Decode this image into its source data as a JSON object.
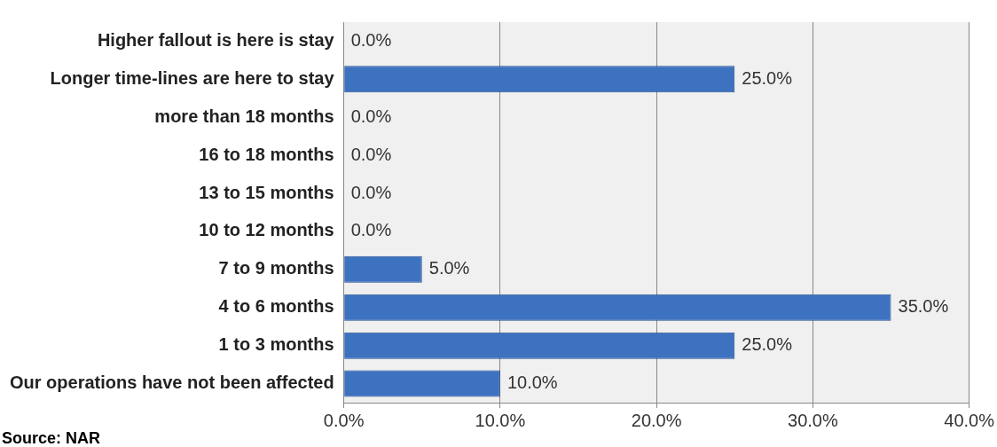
{
  "chart_data": {
    "type": "bar",
    "orientation": "horizontal",
    "categories": [
      "Higher fallout is here is stay",
      "Longer time-lines are here to stay",
      "more than 18 months",
      "16 to 18 months",
      "13 to 15 months",
      "10 to 12 months",
      "7 to 9 months",
      "4 to 6 months",
      "1 to 3 months",
      "Our operations have not been affected"
    ],
    "values": [
      0,
      25,
      0,
      0,
      0,
      0,
      5,
      35,
      25,
      10
    ],
    "value_labels": [
      "0.0%",
      "25.0%",
      "0.0%",
      "0.0%",
      "0.0%",
      "0.0%",
      "5.0%",
      "35.0%",
      "25.0%",
      "10.0%"
    ],
    "color": "#3d72c0",
    "xlim": [
      0,
      40
    ],
    "xticks": [
      {
        "value": 0,
        "label": "0.0%"
      },
      {
        "value": 10,
        "label": "10.0%"
      },
      {
        "value": 20,
        "label": "20.0%"
      },
      {
        "value": 30,
        "label": "30.0%"
      },
      {
        "value": 40,
        "label": "40.0%"
      }
    ],
    "grid": "x",
    "legend": false,
    "annotations": [
      "Source: NAR"
    ]
  }
}
